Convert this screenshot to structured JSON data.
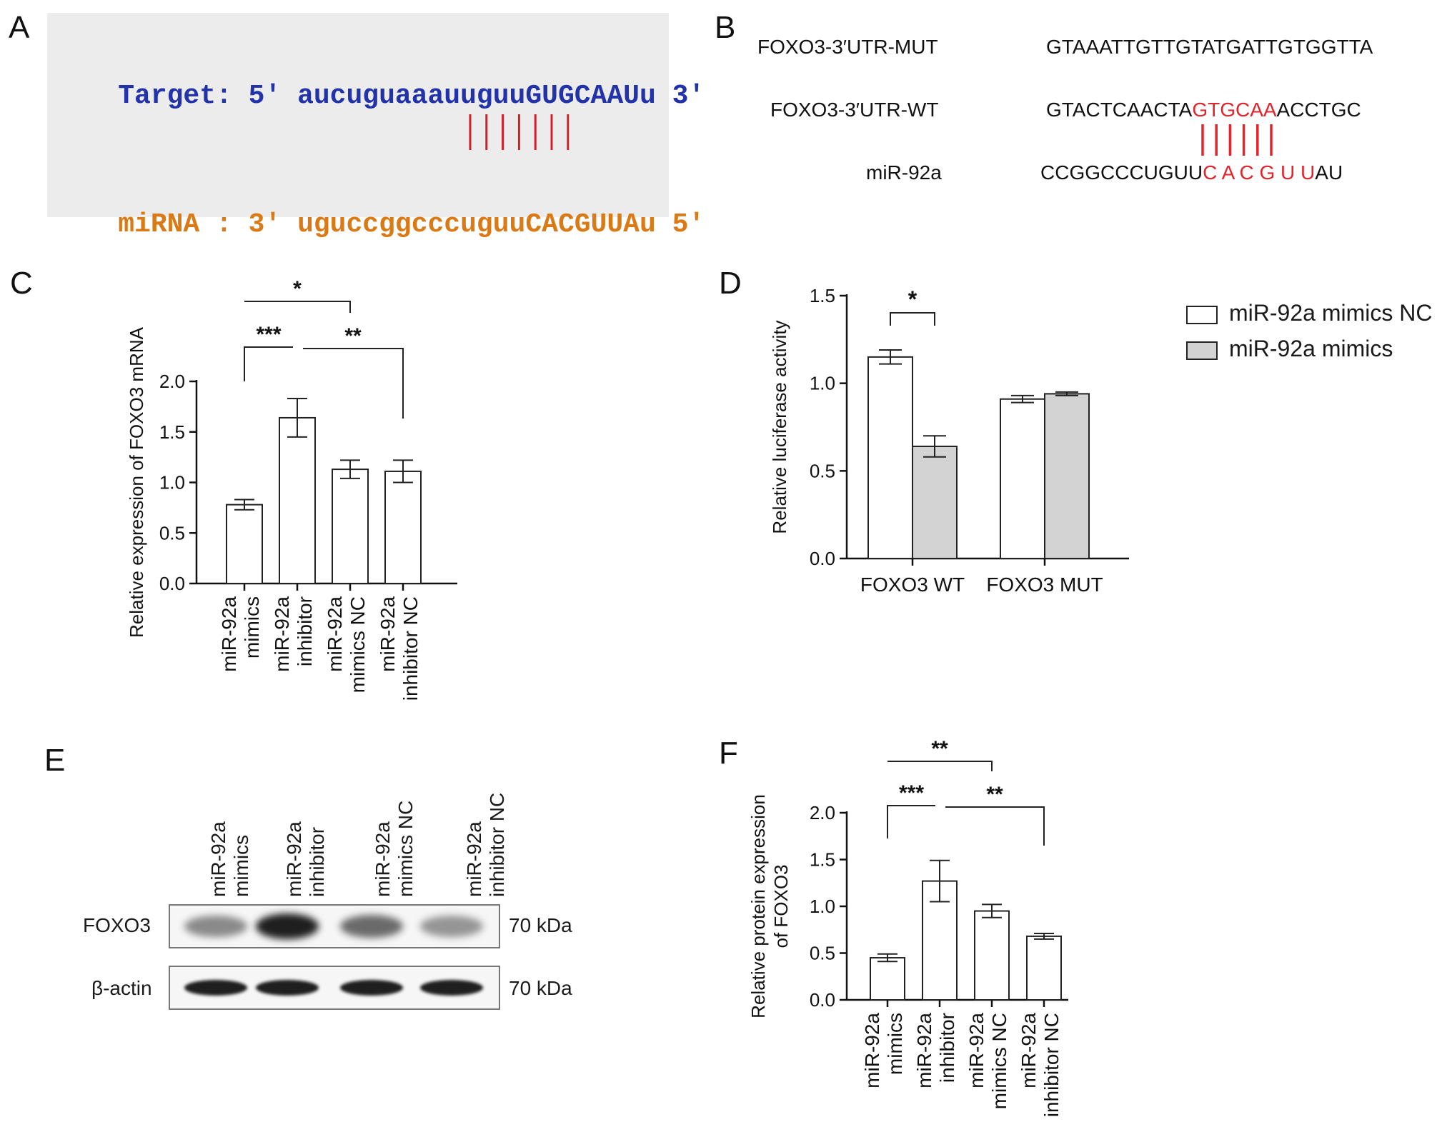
{
  "panel_labels": [
    "A",
    "B",
    "C",
    "D",
    "E",
    "F"
  ],
  "panelA": {
    "target": {
      "prefix": "Target: 5'",
      "seq_lower": "aucuguaaauuguu",
      "seq_upper": "GUGCAAU",
      "tail": "u",
      "suffix": "3'",
      "color": "#2233aa"
    },
    "mirna": {
      "prefix": "miRNA : 3'",
      "seq_lower": "uguccggcccuguu",
      "seq_upper": "CACGUUA",
      "tail": "u",
      "suffix": "5'",
      "color": "#d97a17"
    },
    "pair_color": "#d0202a",
    "box_color": "#ececec"
  },
  "panelB": {
    "rows": [
      {
        "label": "FOXO3-3′UTR-MUT",
        "pre": "GTAAATTGTTGTATGATTGTGGTTA",
        "mid": "",
        "post": ""
      },
      {
        "label": "FOXO3-3′UTR-WT",
        "pre": "GTACTCAACTA",
        "mid": "GTGCAA",
        "post": "ACCTGC"
      },
      {
        "label": "miR-92a",
        "pre": "CCGGCCCUGUU",
        "mid": "C A C G U U",
        "post": "AU"
      }
    ],
    "highlight_color": "#e3242b"
  },
  "chart_data": [
    {
      "panel": "C",
      "type": "bar",
      "ylabel": "Relative expression of FOXO3 mRNA",
      "ylim": [
        0,
        2.0
      ],
      "yticks": [
        "0.0",
        "0.5",
        "1.0",
        "1.5",
        "2.0"
      ],
      "categories": [
        [
          "miR-92a",
          "mimics"
        ],
        [
          "miR-92a",
          "inhibitor"
        ],
        [
          "miR-92a",
          "mimics NC"
        ],
        [
          "miR-92a",
          "inhibitor NC"
        ]
      ],
      "values": [
        0.78,
        1.64,
        1.13,
        1.11
      ],
      "errors": [
        0.05,
        0.19,
        0.09,
        0.11
      ],
      "significance": [
        {
          "from": 0,
          "to": 1,
          "label": "***"
        },
        {
          "from": 1,
          "to": 3,
          "label": "**"
        },
        {
          "from": 0,
          "to": 2,
          "label": "*"
        }
      ]
    },
    {
      "panel": "D",
      "type": "bar",
      "ylabel": "Relative luciferase activity",
      "ylim": [
        0,
        1.5
      ],
      "yticks": [
        "0.0",
        "0.5",
        "1.0",
        "1.5"
      ],
      "categories": [
        "FOXO3 WT",
        "FOXO3 MUT"
      ],
      "series": [
        {
          "name": "miR-92a mimics NC",
          "values": [
            1.15,
            0.91
          ],
          "errors": [
            0.04,
            0.02
          ],
          "color": "#ffffff"
        },
        {
          "name": "miR-92a mimics",
          "values": [
            0.64,
            0.94
          ],
          "errors": [
            0.06,
            0.01
          ],
          "color": "#d3d3d3"
        }
      ],
      "significance": [
        {
          "category": 0,
          "label": "*"
        }
      ],
      "legend": "top-right"
    },
    {
      "panel": "F",
      "type": "bar",
      "ylabel": [
        "Relative protein expression",
        "of FOXO3"
      ],
      "ylim": [
        0,
        2.0
      ],
      "yticks": [
        "0.0",
        "0.5",
        "1.0",
        "1.5",
        "2.0"
      ],
      "categories": [
        [
          "miR-92a",
          "mimics"
        ],
        [
          "miR-92a",
          "inhibitor"
        ],
        [
          "miR-92a",
          "mimics NC"
        ],
        [
          "miR-92a",
          "inhibitor NC"
        ]
      ],
      "values": [
        0.45,
        1.27,
        0.95,
        0.68
      ],
      "errors": [
        0.04,
        0.22,
        0.07,
        0.03
      ],
      "significance": [
        {
          "from": 0,
          "to": 1,
          "label": "***"
        },
        {
          "from": 1,
          "to": 3,
          "label": "**"
        },
        {
          "from": 0,
          "to": 2,
          "label": "**"
        }
      ]
    }
  ],
  "panelE": {
    "lanes": [
      [
        "miR-92a",
        "mimics"
      ],
      [
        "miR-92a",
        "inhibitor"
      ],
      [
        "miR-92a",
        "mimics NC"
      ],
      [
        "miR-92a",
        "inhibitor NC"
      ]
    ],
    "rows": [
      {
        "label": "FOXO3",
        "size": "70 kDa",
        "intensity": [
          0.45,
          0.95,
          0.6,
          0.4
        ]
      },
      {
        "label": "β-actin",
        "size": "70 kDa",
        "intensity": [
          0.95,
          0.95,
          0.95,
          0.95
        ]
      }
    ]
  }
}
